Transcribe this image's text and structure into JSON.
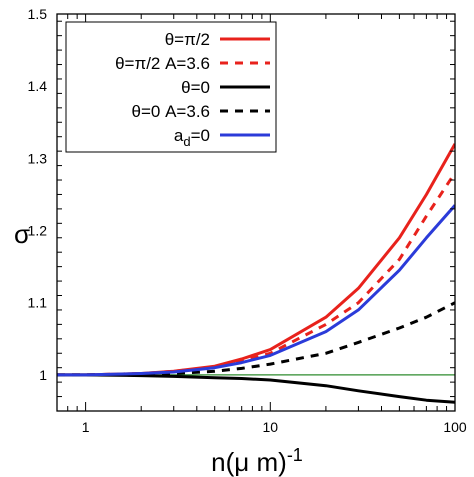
{
  "chart_data": {
    "type": "line",
    "xscale": "log",
    "xlim": [
      0.7,
      100
    ],
    "ylim": [
      0.95,
      1.5
    ],
    "x_ticks": [
      1,
      10,
      100
    ],
    "x_tick_labels": [
      "1",
      "10",
      "100"
    ],
    "y_ticks": [
      1,
      1.1,
      1.2,
      1.3,
      1.4,
      1.5
    ],
    "y_tick_labels": [
      "1",
      "1.1",
      "1.2",
      "1.3",
      "1.4",
      "1.5"
    ],
    "xlabel": {
      "base": "n(μ m)",
      "superscript": "-1"
    },
    "ylabel": "σ",
    "grid": false,
    "legend_position": "top-left",
    "reference_line": {
      "y": 1,
      "color": "#2e8b2e"
    },
    "series": [
      {
        "name": "θ=π/2",
        "color": "#e8221c",
        "dash": "solid",
        "x": [
          0.7,
          1,
          2,
          3,
          5,
          7,
          10,
          20,
          30,
          50,
          70,
          100
        ],
        "y": [
          1.0,
          1.0,
          1.002,
          1.005,
          1.012,
          1.022,
          1.035,
          1.08,
          1.12,
          1.19,
          1.25,
          1.32
        ]
      },
      {
        "name": "θ=π/2 A=3.6",
        "color": "#e8221c",
        "dash": "dashed",
        "x": [
          0.7,
          1,
          2,
          3,
          5,
          7,
          10,
          20,
          30,
          50,
          70,
          100
        ],
        "y": [
          1.0,
          1.0,
          1.002,
          1.005,
          1.011,
          1.019,
          1.03,
          1.07,
          1.1,
          1.16,
          1.22,
          1.28
        ]
      },
      {
        "name": "θ=0",
        "color": "#000000",
        "dash": "solid",
        "x": [
          0.7,
          1,
          2,
          3,
          5,
          7,
          10,
          20,
          30,
          50,
          70,
          100
        ],
        "y": [
          1.0,
          1.0,
          0.999,
          0.998,
          0.996,
          0.995,
          0.993,
          0.985,
          0.978,
          0.97,
          0.965,
          0.962
        ]
      },
      {
        "name": "θ=0 A=3.6",
        "color": "#000000",
        "dash": "dashed",
        "x": [
          0.7,
          1,
          2,
          3,
          5,
          7,
          10,
          20,
          30,
          50,
          70,
          100
        ],
        "y": [
          1.0,
          1.0,
          1.001,
          1.002,
          1.005,
          1.009,
          1.015,
          1.03,
          1.045,
          1.065,
          1.08,
          1.1
        ]
      },
      {
        "name": "ad=0",
        "label_base": "a",
        "label_sub": "d",
        "label_rest": "=0",
        "color": "#2b3bd9",
        "dash": "solid",
        "x": [
          0.7,
          1,
          2,
          3,
          5,
          7,
          10,
          20,
          30,
          50,
          70,
          100
        ],
        "y": [
          1.0,
          1.0,
          1.002,
          1.004,
          1.01,
          1.017,
          1.027,
          1.06,
          1.09,
          1.145,
          1.19,
          1.235
        ]
      }
    ]
  }
}
